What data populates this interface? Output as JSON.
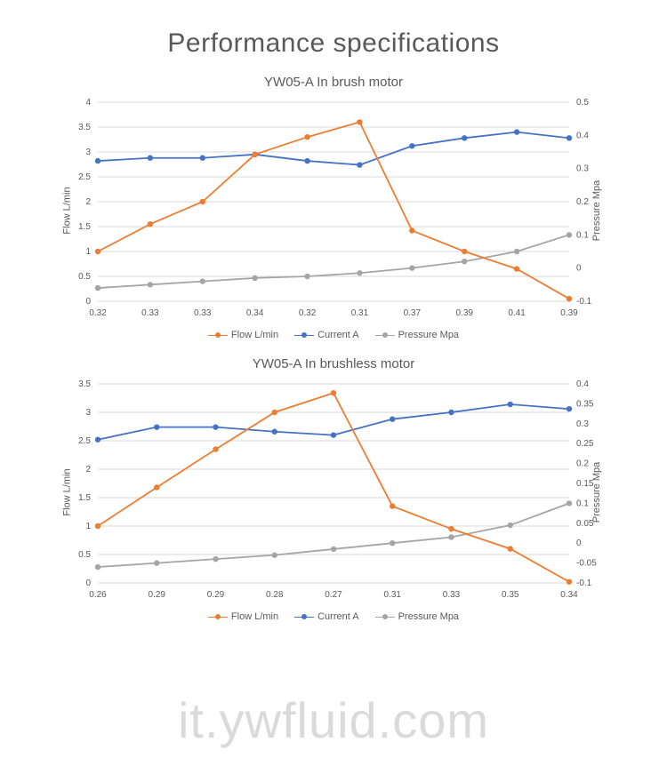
{
  "page_title": "Performance specifications",
  "watermark": "it.ywfluid.com",
  "colors": {
    "series_flow": "#ed7d31",
    "series_current": "#4472c4",
    "series_pressure": "#a5a5a5",
    "grid": "#d9d9d9",
    "text": "#595959",
    "background": "#ffffff"
  },
  "fonts": {
    "title_size_pt": 30,
    "chart_title_size_pt": 15,
    "axis_label_size_pt": 11,
    "tick_size_pt": 10,
    "legend_size_pt": 11
  },
  "legend_labels": {
    "flow": "Flow L/min",
    "current": "Current A",
    "pressure": "Pressure Mpa"
  },
  "axis_labels": {
    "left": "Flow L/min",
    "right": "Pressure Mpa"
  },
  "chart1": {
    "type": "line",
    "title": "YW05-A In brush motor",
    "x_categories": [
      "0.32",
      "0.33",
      "0.33",
      "0.34",
      "0.32",
      "0.31",
      "0.37",
      "0.39",
      "0.41",
      "0.39"
    ],
    "y_left": {
      "min": 0,
      "max": 4,
      "step": 0.5
    },
    "y_right": {
      "min": -0.1,
      "max": 0.5,
      "step": 0.1
    },
    "series": {
      "flow": {
        "axis": "left",
        "color": "#ed7d31",
        "values": [
          1.0,
          1.55,
          2.0,
          2.95,
          3.3,
          3.6,
          1.42,
          1.0,
          0.65,
          0.05
        ]
      },
      "current": {
        "axis": "left",
        "color": "#4472c4",
        "values": [
          2.82,
          2.88,
          2.88,
          2.95,
          2.82,
          2.74,
          3.12,
          3.28,
          3.4,
          3.28
        ]
      },
      "pressure": {
        "axis": "right",
        "color": "#a5a5a5",
        "values": [
          -0.06,
          -0.05,
          -0.04,
          -0.03,
          -0.025,
          -0.015,
          0.0,
          0.02,
          0.05,
          0.1
        ]
      }
    },
    "marker_radius": 3.2,
    "line_width": 1.8
  },
  "chart2": {
    "type": "line",
    "title": "YW05-A In brushless motor",
    "x_categories": [
      "0.26",
      "0.29",
      "0.29",
      "0.28",
      "0.27",
      "0.31",
      "0.33",
      "0.35",
      "0.34"
    ],
    "y_left": {
      "min": 0,
      "max": 3.5,
      "step": 0.5
    },
    "y_right": {
      "min": -0.1,
      "max": 0.4,
      "step": 0.05
    },
    "series": {
      "flow": {
        "axis": "left",
        "color": "#ed7d31",
        "values": [
          1.0,
          1.68,
          2.35,
          3.0,
          3.34,
          1.35,
          0.95,
          0.6,
          0.02
        ]
      },
      "current": {
        "axis": "left",
        "color": "#4472c4",
        "values": [
          2.52,
          2.74,
          2.74,
          2.66,
          2.6,
          2.88,
          3.0,
          3.14,
          3.06
        ]
      },
      "pressure": {
        "axis": "right",
        "color": "#a5a5a5",
        "values": [
          -0.06,
          -0.05,
          -0.04,
          -0.03,
          -0.015,
          0.0,
          0.015,
          0.045,
          0.1
        ]
      }
    },
    "marker_radius": 3.2,
    "line_width": 1.8
  }
}
